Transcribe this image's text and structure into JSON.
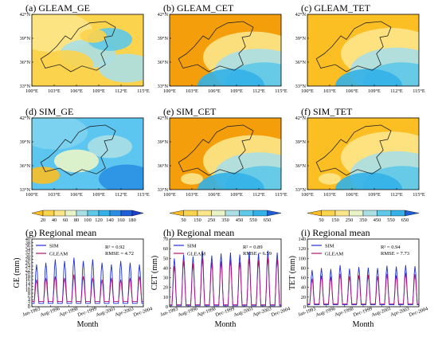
{
  "map_panels": [
    {
      "id": "a",
      "title": "(a) GLEAM_GE",
      "scale": "GE",
      "base": "#fcd34d"
    },
    {
      "id": "b",
      "title": "(b) GLEAM_CET",
      "scale": "CET",
      "base": "#f59e0b"
    },
    {
      "id": "c",
      "title": "(c) GLEAM_TET",
      "scale": "TET",
      "base": "#fbbf24"
    },
    {
      "id": "d",
      "title": "(d) SIM_GE",
      "scale": "GE",
      "base": "#5cc6f0"
    },
    {
      "id": "e",
      "title": "(e) SIM_CET",
      "scale": "CET",
      "base": "#f59e0b"
    },
    {
      "id": "f",
      "title": "(f) SIM_TET",
      "scale": "TET",
      "base": "#fbbf24"
    }
  ],
  "map_axes": {
    "lon_ticks": [
      "100°E",
      "103°E",
      "106°E",
      "109°E",
      "112°E",
      "115°E"
    ],
    "lat_ticks": [
      "33°N",
      "36°N",
      "39°N",
      "42°N"
    ]
  },
  "colorbars": [
    {
      "labels": [
        "20",
        "40",
        "60",
        "80",
        "100",
        "120",
        "140",
        "160",
        "180"
      ],
      "colors": [
        "#fbbf24",
        "#fcd34d",
        "#fde68a",
        "#e9f5c8",
        "#aadfe5",
        "#5ec9e8",
        "#33b1e8",
        "#2a8fe3",
        "#1e5fd8",
        "#1e3fc8"
      ]
    },
    {
      "labels": [
        "50",
        "150",
        "250",
        "350",
        "450",
        "550",
        "650"
      ],
      "colors": [
        "#fbbf24",
        "#fcd34d",
        "#fde68a",
        "#e9f5c8",
        "#aadfe5",
        "#5ec9e8",
        "#33b1e8",
        "#1e5fd8"
      ]
    },
    {
      "labels": [
        "50",
        "150",
        "250",
        "350",
        "450",
        "550",
        "650"
      ],
      "colors": [
        "#fbbf24",
        "#fcd34d",
        "#fde68a",
        "#e9f5c8",
        "#aadfe5",
        "#5ec9e8",
        "#33b1e8",
        "#1e5fd8"
      ]
    }
  ],
  "chart_data": [
    {
      "type": "line",
      "title": "(g) Regional mean",
      "xlabel": "Month",
      "ylabel": "GE (mm)",
      "ylim": [
        0,
        40
      ],
      "yticks": [
        "0",
        "2",
        "4",
        "6",
        "8",
        "10",
        "12",
        "14",
        "16",
        "18",
        "20",
        "22",
        "24",
        "26",
        "28",
        "30",
        "32",
        "34",
        "36",
        "38",
        "40"
      ],
      "xticks": [
        "Jan-1993",
        "Aug-1996",
        "Apr-1998",
        "Dec-1999",
        "Aug-2001",
        "Apr-2003",
        "Dec-2004"
      ],
      "stats": {
        "r2": "R² = 0.92",
        "rmse": "RMSE = 4.72"
      },
      "legend_position": "top-left",
      "series": [
        {
          "name": "SIM",
          "color": "#1f2fd8",
          "peaks": [
            25,
            26,
            28,
            27,
            29,
            27,
            28,
            26,
            25,
            27,
            26,
            25
          ],
          "trough": 2
        },
        {
          "name": "GLEAM",
          "color": "#b0127a",
          "peaks": [
            16,
            17,
            18,
            17,
            19,
            18,
            17,
            16,
            17,
            16,
            17,
            18
          ],
          "trough": 3
        }
      ]
    },
    {
      "type": "line",
      "title": "(h) Regional mean",
      "xlabel": "Month",
      "ylabel": "CET (mm)",
      "ylim": [
        0,
        70
      ],
      "yticks": [
        "0",
        "10",
        "20",
        "30",
        "40",
        "50",
        "60",
        "70"
      ],
      "xticks": [
        "Jan-1993",
        "Aug-1996",
        "Apr-1998",
        "Dec-1999",
        "Aug-2001",
        "Apr-2003",
        "Dec-2004"
      ],
      "stats": {
        "r2": "R² = 0.89",
        "rmse": "RMSE = 6.59"
      },
      "legend_position": "top-left",
      "series": [
        {
          "name": "SIM",
          "color": "#1f2fd8",
          "peaks": [
            50,
            54,
            52,
            58,
            53,
            55,
            56,
            54,
            57,
            55,
            58,
            56
          ],
          "trough": 1
        },
        {
          "name": "GLEAM",
          "color": "#b0127a",
          "peaks": [
            42,
            48,
            45,
            50,
            46,
            47,
            49,
            46,
            50,
            48,
            51,
            49
          ],
          "trough": 2
        }
      ]
    },
    {
      "type": "line",
      "title": "(i) Regional mean",
      "xlabel": "Month",
      "ylabel": "TET (mm)",
      "ylim": [
        0,
        140
      ],
      "yticks": [
        "0",
        "20",
        "40",
        "60",
        "80",
        "100",
        "120",
        "140"
      ],
      "xticks": [
        "Jan-1993",
        "Aug-1996",
        "Apr-1998",
        "Dec-1999",
        "Aug-2001",
        "Apr-2003",
        "Dec-2004"
      ],
      "stats": {
        "r2": "R² = 0.94",
        "rmse": "RMSE = 7.73"
      },
      "legend_position": "top-left",
      "series": [
        {
          "name": "SIM",
          "color": "#1f2fd8",
          "peaks": [
            76,
            80,
            78,
            86,
            79,
            82,
            81,
            80,
            85,
            83,
            86,
            84
          ],
          "trough": 4
        },
        {
          "name": "GLEAM",
          "color": "#b0127a",
          "peaks": [
            58,
            64,
            62,
            68,
            63,
            65,
            66,
            63,
            68,
            65,
            70,
            67
          ],
          "trough": 6
        }
      ]
    }
  ]
}
